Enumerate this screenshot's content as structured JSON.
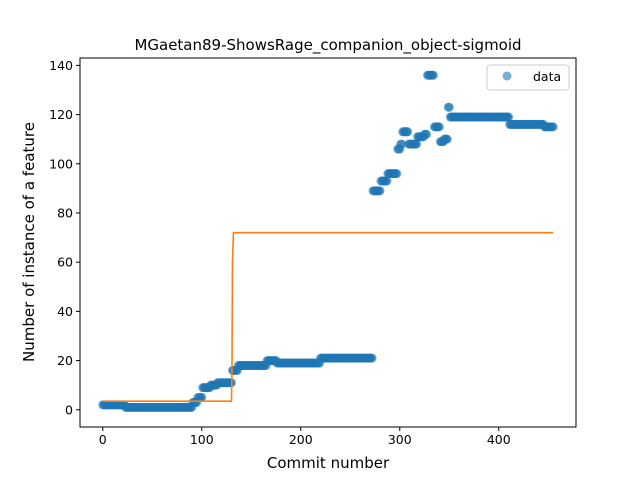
{
  "chart_data": {
    "type": "scatter",
    "title": "MGaetan89-ShowsRage_companion_object-sigmoid",
    "xlabel": "Commit number",
    "ylabel": "Number of instance of a feature",
    "xlim": [
      -23,
      478
    ],
    "ylim": [
      -7,
      143
    ],
    "xticks": [
      0,
      100,
      200,
      300,
      400
    ],
    "yticks": [
      0,
      20,
      40,
      60,
      80,
      100,
      120,
      140
    ],
    "grid": false,
    "legend": {
      "position": "top-right",
      "entries": [
        "data"
      ]
    },
    "colors": {
      "data": "#1f77b4",
      "fit": "#ff7f0e",
      "axes": "#000000"
    },
    "series": [
      {
        "name": "data",
        "kind": "scatter",
        "segments": [
          {
            "x_from": 0,
            "x_to": 22,
            "y": 2
          },
          {
            "x_from": 23,
            "x_to": 90,
            "y": 1
          },
          {
            "x_from": 91,
            "x_to": 95,
            "y": 3
          },
          {
            "x_from": 96,
            "x_to": 100,
            "y": 5
          },
          {
            "x_from": 101,
            "x_to": 108,
            "y": 9
          },
          {
            "x_from": 109,
            "x_to": 115,
            "y": 10
          },
          {
            "x_from": 116,
            "x_to": 130,
            "y": 11
          },
          {
            "x_from": 131,
            "x_to": 136,
            "y": 16
          },
          {
            "x_from": 137,
            "x_to": 165,
            "y": 18
          },
          {
            "x_from": 166,
            "x_to": 175,
            "y": 20
          },
          {
            "x_from": 176,
            "x_to": 219,
            "y": 19
          },
          {
            "x_from": 220,
            "x_to": 272,
            "y": 21
          },
          {
            "x_from": 273,
            "x_to": 280,
            "y": 89
          },
          {
            "x_from": 281,
            "x_to": 287,
            "y": 93
          },
          {
            "x_from": 288,
            "x_to": 297,
            "y": 96
          },
          {
            "x_from": 298,
            "x_to": 300,
            "y": 106
          },
          {
            "x_from": 301,
            "x_to": 302,
            "y": 108
          },
          {
            "x_from": 303,
            "x_to": 308,
            "y": 113
          },
          {
            "x_from": 309,
            "x_to": 317,
            "y": 108
          },
          {
            "x_from": 318,
            "x_to": 324,
            "y": 111
          },
          {
            "x_from": 325,
            "x_to": 327,
            "y": 112
          },
          {
            "x_from": 328,
            "x_to": 334,
            "y": 136
          },
          {
            "x_from": 335,
            "x_to": 340,
            "y": 115
          },
          {
            "x_from": 341,
            "x_to": 344,
            "y": 109
          },
          {
            "x_from": 345,
            "x_to": 348,
            "y": 110
          },
          {
            "x_from": 349,
            "x_to": 350,
            "y": 123
          },
          {
            "x_from": 351,
            "x_to": 410,
            "y": 119
          },
          {
            "x_from": 411,
            "x_to": 445,
            "y": 116
          },
          {
            "x_from": 446,
            "x_to": 455,
            "y": 115
          }
        ]
      },
      {
        "name": "",
        "kind": "line",
        "points": [
          [
            0,
            3.5
          ],
          [
            130,
            3.5
          ],
          [
            130.5,
            15
          ],
          [
            131,
            60
          ],
          [
            132,
            72
          ],
          [
            455,
            72
          ]
        ]
      }
    ]
  }
}
